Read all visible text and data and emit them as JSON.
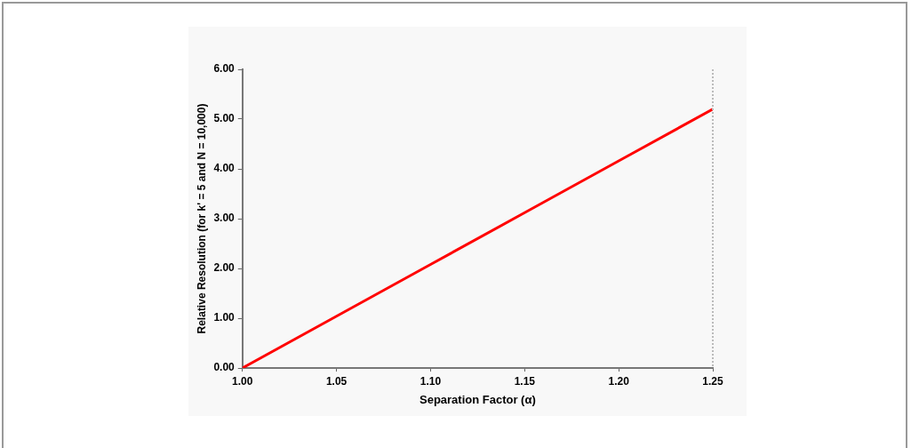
{
  "chart_data": {
    "type": "line",
    "xlabel": "Separation Factor (α)",
    "ylabel": "Relative Resolution (for k' = 5 and N = 10,000)",
    "series": [
      {
        "color": "#ff0000",
        "x": [
          1.0,
          1.05,
          1.1,
          1.15,
          1.2,
          1.25
        ],
        "values": [
          0,
          1.04,
          2.08,
          3.12,
          4.16,
          5.2
        ]
      }
    ],
    "xlim": [
      1.0,
      1.25
    ],
    "xticks": [
      {
        "value": 1.0,
        "label": "1.00"
      },
      {
        "value": 1.05,
        "label": "1.05"
      },
      {
        "value": 1.1,
        "label": "1.10"
      },
      {
        "value": 1.15,
        "label": "1.15"
      },
      {
        "value": 1.2,
        "label": "1.20"
      },
      {
        "value": 1.25,
        "label": "1.25"
      }
    ],
    "ylim": [
      0,
      6
    ],
    "yticks": [
      {
        "value": 0,
        "label": "0.00"
      },
      {
        "value": 1,
        "label": "1.00"
      },
      {
        "value": 2,
        "label": "2.00"
      },
      {
        "value": 3,
        "label": "3.00"
      },
      {
        "value": 4,
        "label": "4.00"
      },
      {
        "value": 5,
        "label": "5.00"
      },
      {
        "value": 6,
        "label": "6.00"
      }
    ],
    "grid": false,
    "legend": false,
    "marker": "none",
    "line_style": "solid"
  }
}
